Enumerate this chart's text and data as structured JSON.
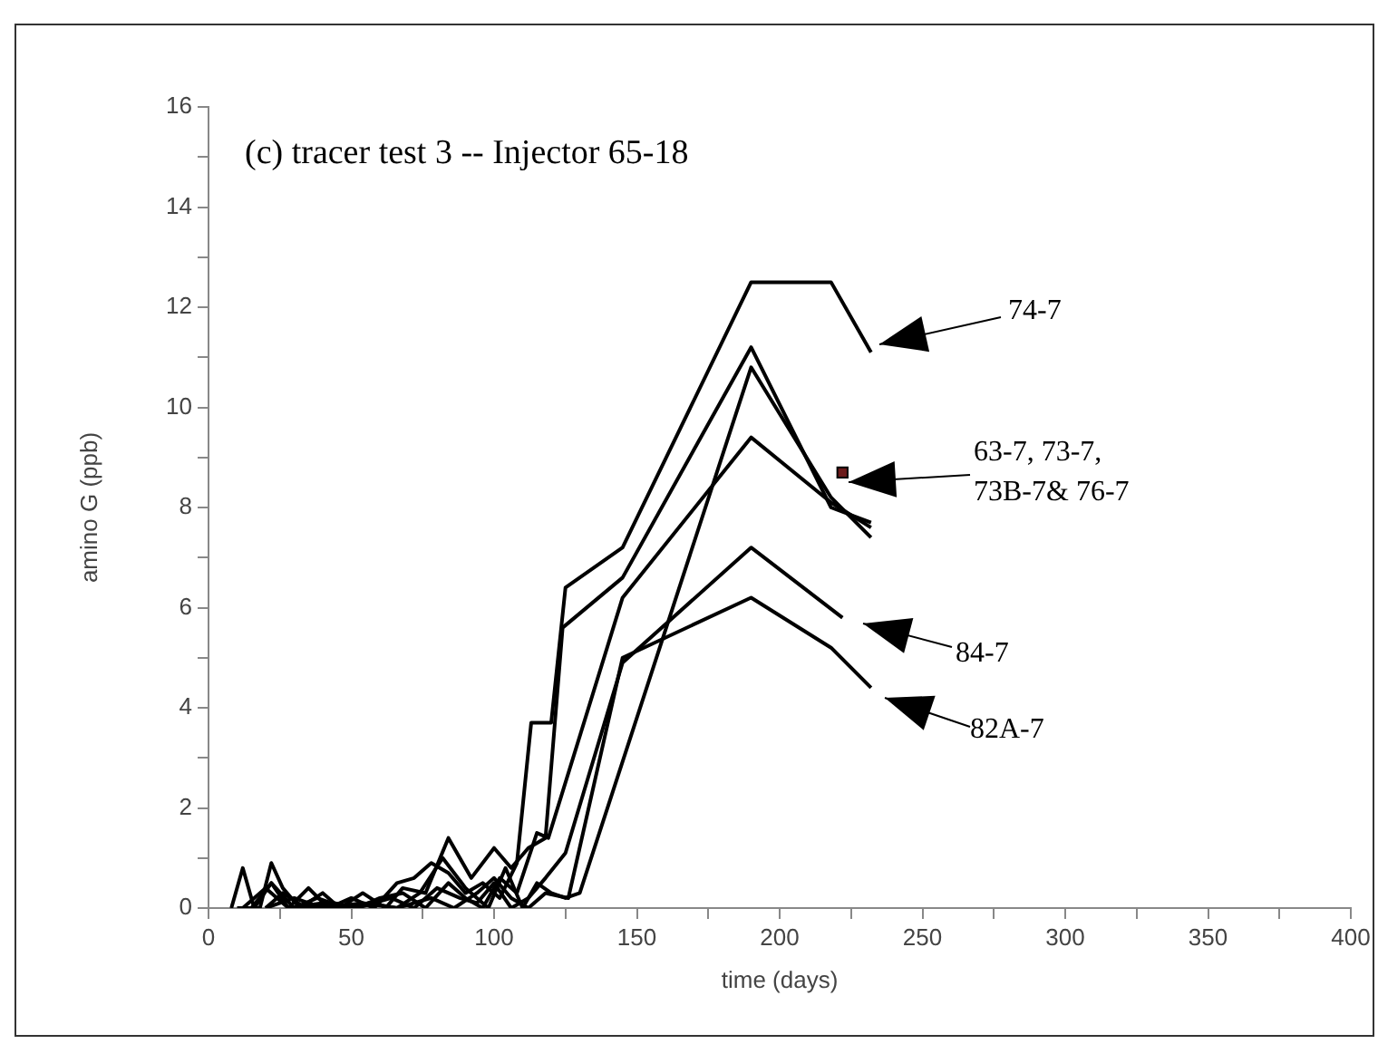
{
  "chart_data": {
    "type": "line",
    "title": "(c) tracer test 3 -- Injector 65-18",
    "xlabel": "time (days)",
    "ylabel": "amino G (ppb)",
    "xlim": [
      0,
      400
    ],
    "xticks": [
      0,
      {
        "value": 25,
        "label": null
      },
      50,
      {
        "value": 75,
        "label": null
      },
      100,
      {
        "value": 125,
        "label": null
      },
      150,
      {
        "value": 175,
        "label": null
      },
      200,
      {
        "value": 225,
        "label": null
      },
      250,
      {
        "value": 275,
        "label": null
      },
      300,
      {
        "value": 325,
        "label": null
      },
      350,
      {
        "value": 375,
        "label": null
      },
      400
    ],
    "ylim": [
      0,
      16
    ],
    "yticks": [
      0,
      {
        "value": 1,
        "label": null
      },
      2,
      {
        "value": 3,
        "label": null
      },
      4,
      {
        "value": 5,
        "label": null
      },
      6,
      {
        "value": 7,
        "label": null
      },
      8,
      {
        "value": 9,
        "label": null
      },
      10,
      {
        "value": 11,
        "label": null
      },
      12,
      {
        "value": 13,
        "label": null
      },
      14,
      {
        "value": 15,
        "label": null
      },
      16
    ],
    "grid": false,
    "legend": false,
    "marker": "none",
    "line_style": "solid",
    "series": [
      {
        "color": "#000000",
        "x": [
          8,
          12,
          16,
          22,
          28,
          35,
          42,
          50,
          58,
          66,
          72,
          78,
          84,
          90,
          96,
          102,
          108,
          113,
          120,
          125,
          145,
          190,
          218,
          232
        ],
        "values": [
          0,
          0.8,
          0,
          0.5,
          0,
          0.4,
          0,
          0.2,
          0,
          0.5,
          0.6,
          0.9,
          0.7,
          0.3,
          0.5,
          0.2,
          0.9,
          3.7,
          3.7,
          6.4,
          7.2,
          12.5,
          12.5,
          11.1
        ]
      },
      {
        "color": "#000000",
        "x": [
          10,
          18,
          22,
          26,
          32,
          40,
          46,
          54,
          62,
          68,
          76,
          84,
          92,
          100,
          106,
          112,
          118,
          124,
          145,
          190,
          218,
          232
        ],
        "values": [
          0,
          0,
          0.9,
          0.4,
          0,
          0.3,
          0,
          0.3,
          0,
          0.4,
          0.3,
          1.4,
          0.6,
          1.2,
          0.8,
          1.2,
          1.4,
          5.6,
          6.6,
          11.2,
          8.0,
          7.7
        ]
      },
      {
        "color": "#000000",
        "x": [
          15,
          22,
          30,
          38,
          48,
          56,
          66,
          74,
          82,
          90,
          98,
          104,
          110,
          115,
          120,
          125,
          130,
          190,
          218,
          232
        ],
        "values": [
          0,
          0.5,
          0,
          0.2,
          0,
          0.1,
          0,
          0.3,
          1.0,
          0.4,
          0,
          0.8,
          0,
          0.5,
          0.3,
          0.2,
          0.3,
          10.8,
          8.2,
          7.4
        ]
      },
      {
        "color": "#000000",
        "x": [
          20,
          26,
          34,
          44,
          52,
          60,
          68,
          76,
          84,
          90,
          96,
          102,
          108,
          115,
          119,
          145,
          190,
          218,
          232
        ],
        "values": [
          0,
          0.3,
          0,
          0.1,
          0,
          0.2,
          0.3,
          0,
          0.5,
          0.2,
          0,
          0.6,
          0.3,
          1.5,
          1.4,
          6.2,
          9.4,
          8.1,
          7.6
        ]
      },
      {
        "color": "#000000",
        "x": [
          12,
          20,
          28,
          40,
          52,
          64,
          72,
          80,
          88,
          94,
          100,
          106,
          112,
          118,
          125,
          145,
          190,
          222
        ],
        "values": [
          0,
          0.4,
          0,
          0.1,
          0,
          0.2,
          0,
          0.4,
          0.2,
          0.1,
          0.5,
          0,
          0.2,
          0.6,
          1.1,
          4.9,
          7.2,
          5.8
        ]
      },
      {
        "color": "#000000",
        "x": [
          20,
          30,
          40,
          54,
          66,
          78,
          86,
          94,
          100,
          106,
          112,
          118,
          126,
          145,
          190,
          218,
          232
        ],
        "values": [
          0,
          0.2,
          0,
          0.1,
          0,
          0.2,
          0,
          0.3,
          0.6,
          0.2,
          0,
          0.3,
          0.2,
          5.0,
          6.2,
          5.2,
          4.4
        ]
      },
      {
        "type": "scatter",
        "marker": "square",
        "color": "#6b1a1a",
        "x": [
          222
        ],
        "values": [
          8.7
        ]
      }
    ],
    "annotations": [
      "74-7",
      "63-7, 73-7,\n73B-7& 76-7",
      "84-7",
      "82A-7"
    ]
  }
}
